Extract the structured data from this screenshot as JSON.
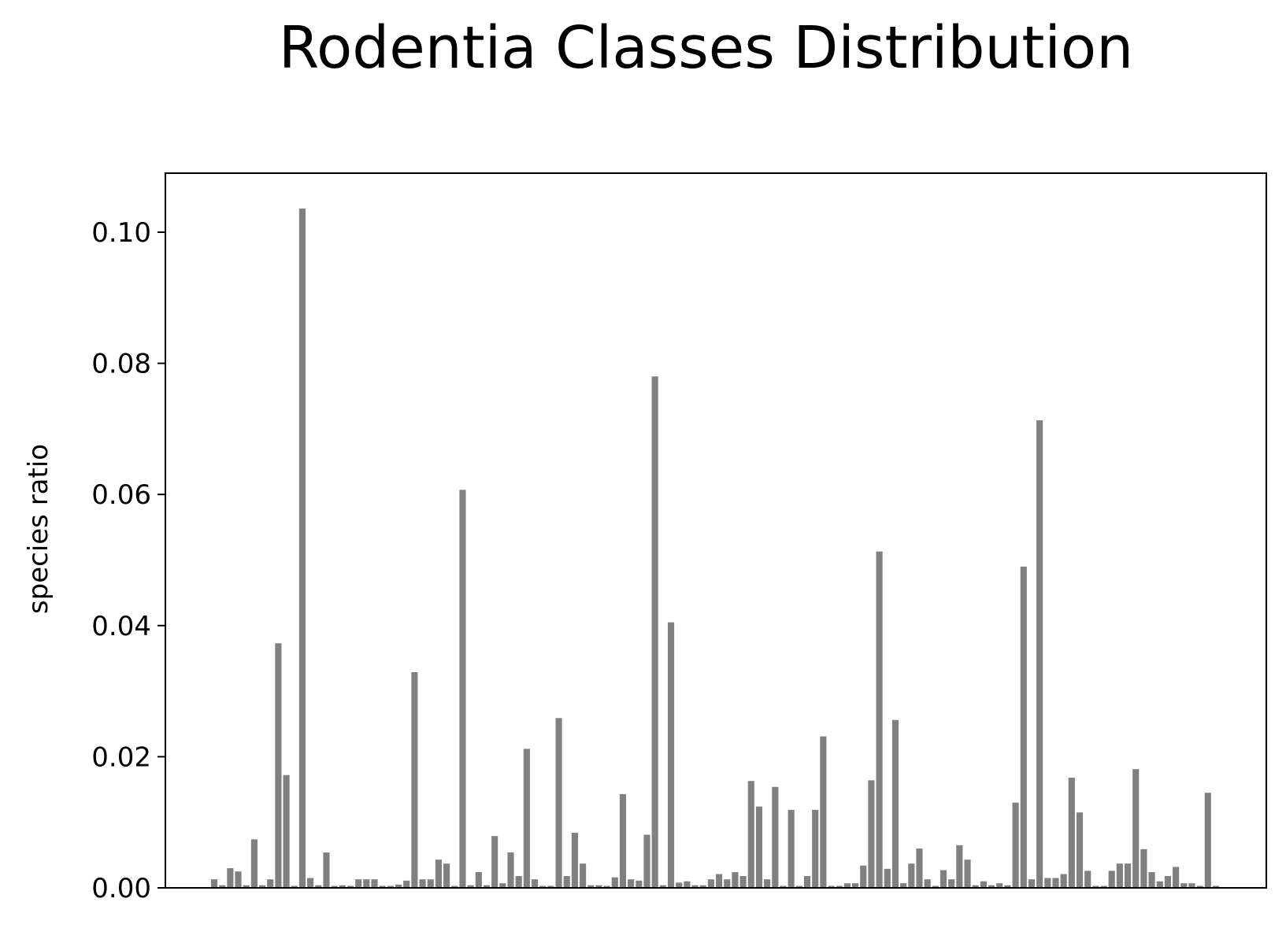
{
  "chart_data": {
    "type": "bar",
    "title": "Rodentia Classes Distribution",
    "xlabel": "",
    "ylabel": "species ratio",
    "ylim": [
      0,
      0.109
    ],
    "yticks": [
      "0.00",
      "0.02",
      "0.04",
      "0.06",
      "0.08",
      "0.10"
    ],
    "bar_color": "#808080",
    "grid": false,
    "values": [
      0.0013,
      0.0004,
      0.003,
      0.0025,
      0.0004,
      0.0074,
      0.0004,
      0.0013,
      0.0373,
      0.0172,
      0.0003,
      0.1036,
      0.0015,
      0.0004,
      0.0054,
      0.0003,
      0.0004,
      0.0003,
      0.0013,
      0.0013,
      0.0013,
      0.0003,
      0.0003,
      0.0005,
      0.0011,
      0.0329,
      0.0013,
      0.0013,
      0.0043,
      0.0037,
      0.0003,
      0.0607,
      0.0004,
      0.0024,
      0.0004,
      0.0079,
      0.0007,
      0.0054,
      0.0018,
      0.0212,
      0.0013,
      0.0003,
      0.0003,
      0.0259,
      0.0018,
      0.0084,
      0.0037,
      0.0004,
      0.0004,
      0.0003,
      0.0016,
      0.0143,
      0.0013,
      0.0011,
      0.0081,
      0.078,
      0.0004,
      0.0405,
      0.0008,
      0.001,
      0.0004,
      0.0004,
      0.0013,
      0.0021,
      0.0013,
      0.0024,
      0.0018,
      0.0163,
      0.0124,
      0.0013,
      0.0154,
      0.0003,
      0.0119,
      0.0003,
      0.0018,
      0.0119,
      0.0231,
      0.0003,
      0.0003,
      0.0007,
      0.0007,
      0.0034,
      0.0164,
      0.0513,
      0.0029,
      0.0256,
      0.0007,
      0.0037,
      0.006,
      0.0013,
      0.0003,
      0.0027,
      0.0013,
      0.0065,
      0.0043,
      0.0004,
      0.001,
      0.0004,
      0.0007,
      0.0004,
      0.013,
      0.049,
      0.0013,
      0.0713,
      0.0015,
      0.0015,
      0.0021,
      0.0168,
      0.0115,
      0.0026,
      0.0003,
      0.0003,
      0.0026,
      0.0037,
      0.0037,
      0.0181,
      0.0059,
      0.0024,
      0.001,
      0.0018,
      0.0032,
      0.0007,
      0.0007,
      0.0003,
      0.0145,
      0.0003
    ]
  }
}
